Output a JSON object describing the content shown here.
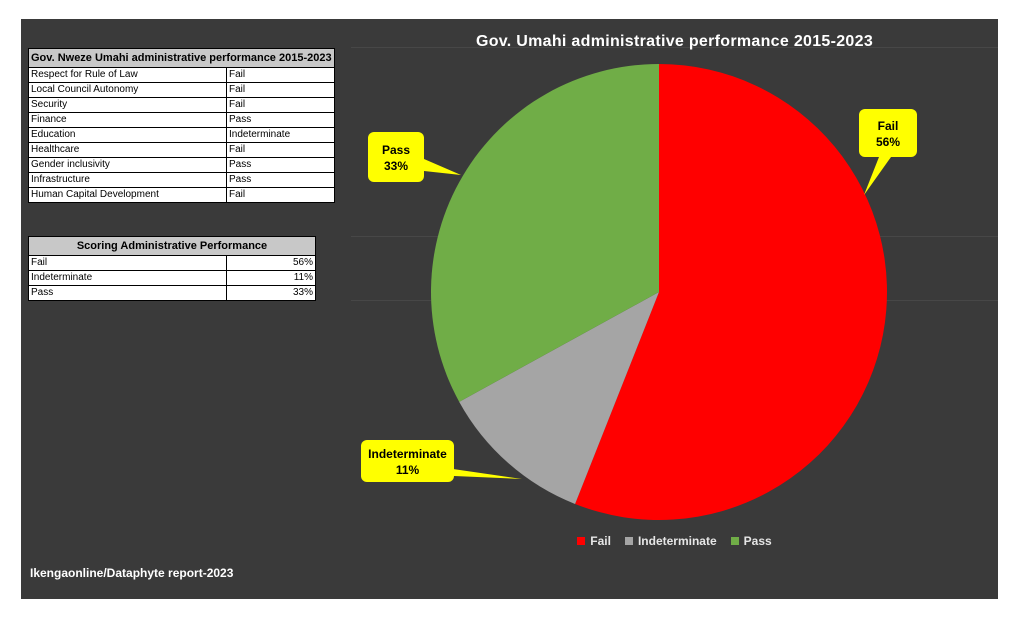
{
  "table1": {
    "title": "Gov. Nweze Umahi administrative performance 2015-2023",
    "rows": [
      [
        "Respect for Rule of Law",
        "Fail"
      ],
      [
        "Local Council Autonomy",
        "Fail"
      ],
      [
        "Security",
        "Fail"
      ],
      [
        "Finance",
        "Pass"
      ],
      [
        "Education",
        "Indeterminate"
      ],
      [
        "Healthcare",
        "Fail"
      ],
      [
        "Gender inclusivity",
        "Pass"
      ],
      [
        "Infrastructure",
        "Pass"
      ],
      [
        "Human Capital Development",
        "Fail"
      ]
    ]
  },
  "table2": {
    "title": "Scoring Administrative Performance",
    "rows": [
      [
        "Fail",
        "56%"
      ],
      [
        "Indeterminate",
        "11%"
      ],
      [
        "Pass",
        "33%"
      ]
    ]
  },
  "source": "Ikengaonline/Dataphyte report-2023",
  "chart_data": {
    "type": "pie",
    "title": "Gov. Umahi administrative performance 2015-2023",
    "categories": [
      "Fail",
      "Indeterminate",
      "Pass"
    ],
    "values": [
      56,
      11,
      33
    ],
    "labels": [
      "56%",
      "11%",
      "33%"
    ],
    "colors": [
      "#ff0000",
      "#a5a5a5",
      "#70ad47"
    ],
    "callout_color": "#ffff00",
    "legend_position": "bottom",
    "start": "top, clockwise"
  }
}
